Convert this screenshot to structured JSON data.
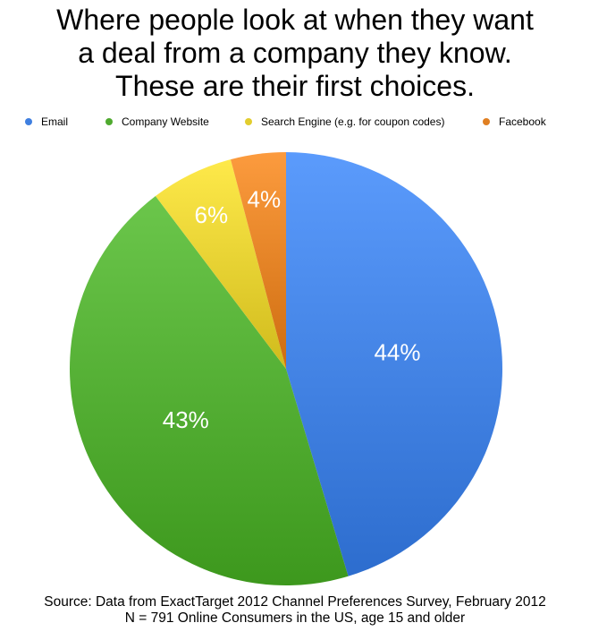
{
  "title_lines": [
    "Where people look at when they want",
    "a deal from a company they know.",
    "These are their first choices."
  ],
  "colors": {
    "email": "#3f7fe0",
    "company_website": "#4faa2f",
    "search_engine": "#e2cd2e",
    "facebook": "#e07f22"
  },
  "chart_data": {
    "type": "pie",
    "title": "Where people look at when they want a deal from a company they know. These are their first choices.",
    "legend_position": "top",
    "slices": [
      {
        "label": "Email",
        "value": 44,
        "display": "44%",
        "color": "#3f7fe0"
      },
      {
        "label": "Company Website",
        "value": 43,
        "display": "43%",
        "color": "#4faa2f"
      },
      {
        "label": "Search Engine (e.g. for coupon codes)",
        "value": 6,
        "display": "6%",
        "color": "#e2cd2e"
      },
      {
        "label": "Facebook",
        "value": 4,
        "display": "4%",
        "color": "#e07f22"
      }
    ]
  },
  "source_lines": [
    "Source: Data from ExactTarget 2012 Channel Preferences Survey, February 2012",
    "N = 791 Online Consumers in the US, age 15 and older"
  ]
}
